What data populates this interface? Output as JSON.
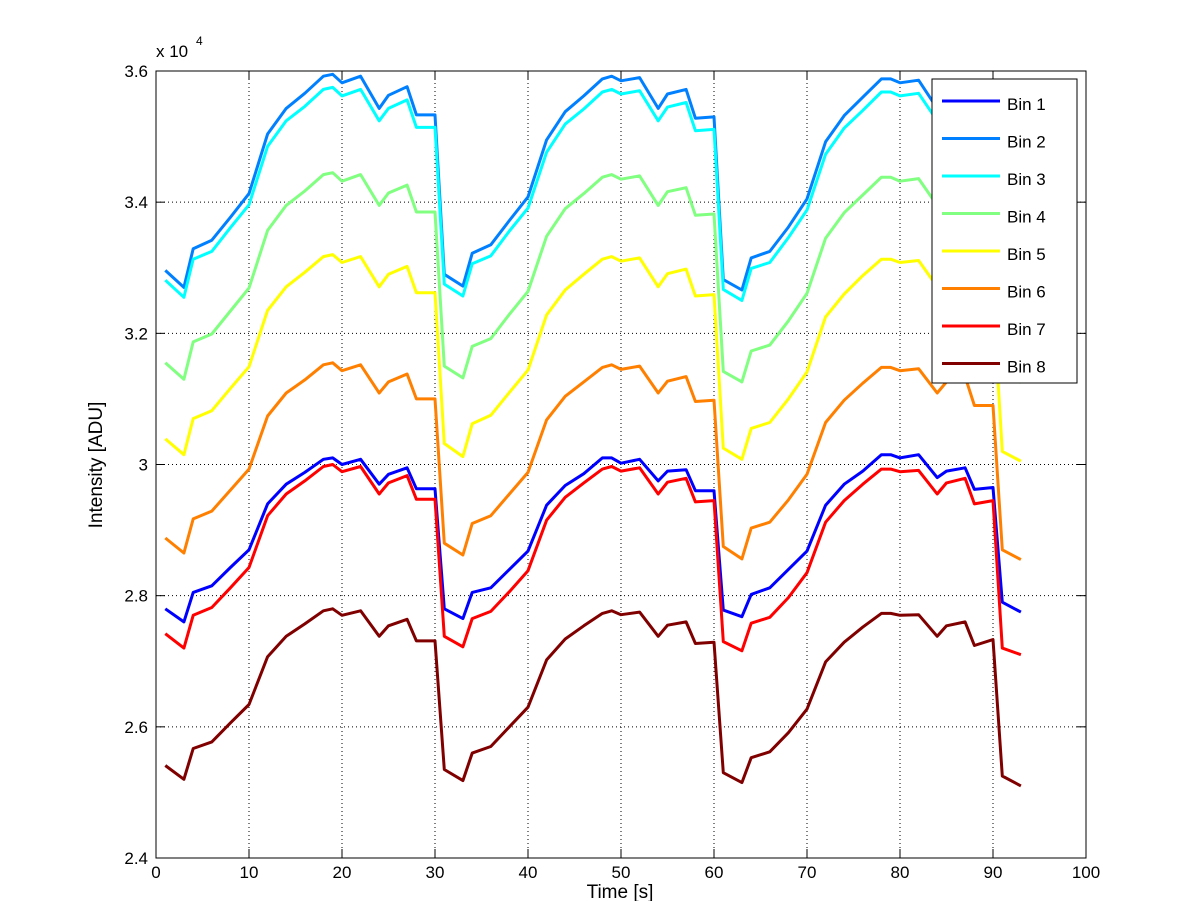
{
  "chart_data": {
    "type": "line",
    "xlabel": "Time [s]",
    "ylabel": "Intensity [ADU]",
    "y_multiplier_label": "x 10",
    "y_multiplier_exp": "4",
    "xlim": [
      0,
      100
    ],
    "ylim": [
      2.4,
      3.6
    ],
    "xticks": [
      "0",
      "10",
      "20",
      "30",
      "40",
      "50",
      "60",
      "70",
      "80",
      "90",
      "100"
    ],
    "yticks": [
      "2.4",
      "2.6",
      "2.8",
      "3",
      "3.2",
      "3.4",
      "3.6"
    ],
    "grid": true,
    "legend_position": "top-right",
    "x": [
      1,
      3,
      4,
      6,
      8,
      10,
      12,
      14,
      16,
      18,
      19,
      20,
      22,
      24,
      25,
      27,
      28,
      30,
      31,
      33,
      34,
      36,
      38,
      40,
      42,
      44,
      46,
      48,
      49,
      50,
      52,
      54,
      55,
      57,
      58,
      60,
      61,
      63,
      64,
      66,
      68,
      70,
      72,
      74,
      76,
      78,
      79,
      80,
      82,
      84,
      85,
      87,
      88,
      90,
      91,
      93
    ],
    "series": [
      {
        "name": "Bin 1",
        "color": "#0000ff",
        "values": [
          2.78,
          2.76,
          2.805,
          2.815,
          2.843,
          2.87,
          2.94,
          2.97,
          2.988,
          3.008,
          3.01,
          3.0,
          3.008,
          2.97,
          2.985,
          2.995,
          2.963,
          2.963,
          2.78,
          2.765,
          2.805,
          2.812,
          2.84,
          2.868,
          2.938,
          2.968,
          2.986,
          3.01,
          3.01,
          3.002,
          3.008,
          2.975,
          2.99,
          2.992,
          2.96,
          2.96,
          2.778,
          2.768,
          2.802,
          2.812,
          2.84,
          2.868,
          2.938,
          2.97,
          2.99,
          3.015,
          3.015,
          3.01,
          3.015,
          2.98,
          2.99,
          2.995,
          2.962,
          2.965,
          2.79,
          2.775
        ]
      },
      {
        "name": "Bin 2",
        "color": "#0080ff",
        "values": [
          3.296,
          3.27,
          3.329,
          3.342,
          3.377,
          3.413,
          3.504,
          3.543,
          3.566,
          3.592,
          3.595,
          3.582,
          3.592,
          3.543,
          3.563,
          3.576,
          3.533,
          3.533,
          3.29,
          3.272,
          3.322,
          3.335,
          3.372,
          3.408,
          3.495,
          3.538,
          3.562,
          3.588,
          3.592,
          3.585,
          3.59,
          3.543,
          3.565,
          3.572,
          3.528,
          3.53,
          3.282,
          3.266,
          3.315,
          3.325,
          3.362,
          3.405,
          3.492,
          3.532,
          3.56,
          3.588,
          3.588,
          3.582,
          3.586,
          3.543,
          3.562,
          3.572,
          3.522,
          3.522,
          3.28,
          3.27
        ]
      },
      {
        "name": "Bin 3",
        "color": "#00ffff",
        "values": [
          3.281,
          3.255,
          3.313,
          3.325,
          3.361,
          3.396,
          3.485,
          3.524,
          3.546,
          3.572,
          3.575,
          3.562,
          3.572,
          3.524,
          3.543,
          3.556,
          3.514,
          3.514,
          3.275,
          3.257,
          3.306,
          3.318,
          3.356,
          3.391,
          3.476,
          3.519,
          3.542,
          3.568,
          3.572,
          3.565,
          3.57,
          3.524,
          3.545,
          3.552,
          3.509,
          3.511,
          3.267,
          3.25,
          3.299,
          3.308,
          3.346,
          3.388,
          3.473,
          3.513,
          3.54,
          3.568,
          3.568,
          3.562,
          3.566,
          3.524,
          3.542,
          3.552,
          3.503,
          3.503,
          3.265,
          3.25
        ]
      },
      {
        "name": "Bin 4",
        "color": "#80ff80",
        "values": [
          3.155,
          3.13,
          3.187,
          3.199,
          3.234,
          3.269,
          3.357,
          3.395,
          3.417,
          3.442,
          3.445,
          3.432,
          3.442,
          3.395,
          3.414,
          3.426,
          3.385,
          3.385,
          3.15,
          3.132,
          3.18,
          3.192,
          3.229,
          3.264,
          3.348,
          3.39,
          3.413,
          3.438,
          3.442,
          3.435,
          3.44,
          3.395,
          3.416,
          3.422,
          3.38,
          3.382,
          3.142,
          3.126,
          3.173,
          3.182,
          3.219,
          3.261,
          3.345,
          3.384,
          3.411,
          3.438,
          3.438,
          3.432,
          3.436,
          3.395,
          3.413,
          3.422,
          3.375,
          3.375,
          3.14,
          3.125
        ]
      },
      {
        "name": "Bin 5",
        "color": "#ffff00",
        "values": [
          3.039,
          3.015,
          3.07,
          3.082,
          3.116,
          3.149,
          3.235,
          3.271,
          3.293,
          3.317,
          3.32,
          3.308,
          3.317,
          3.271,
          3.29,
          3.302,
          3.262,
          3.262,
          3.032,
          3.012,
          3.062,
          3.075,
          3.11,
          3.144,
          3.228,
          3.266,
          3.29,
          3.313,
          3.317,
          3.31,
          3.315,
          3.271,
          3.291,
          3.298,
          3.257,
          3.259,
          3.025,
          3.008,
          3.055,
          3.064,
          3.1,
          3.141,
          3.225,
          3.26,
          3.288,
          3.313,
          3.313,
          3.308,
          3.311,
          3.271,
          3.29,
          3.298,
          3.252,
          3.252,
          3.02,
          3.005
        ]
      },
      {
        "name": "Bin 6",
        "color": "#ff8000",
        "values": [
          2.888,
          2.865,
          2.917,
          2.929,
          2.961,
          2.993,
          3.074,
          3.109,
          3.129,
          3.152,
          3.155,
          3.143,
          3.152,
          3.109,
          3.126,
          3.138,
          3.1,
          3.1,
          2.88,
          2.862,
          2.91,
          2.922,
          2.955,
          2.988,
          3.068,
          3.104,
          3.126,
          3.148,
          3.152,
          3.145,
          3.15,
          3.109,
          3.127,
          3.134,
          3.096,
          3.098,
          2.875,
          2.856,
          2.903,
          2.912,
          2.946,
          2.985,
          3.064,
          3.098,
          3.124,
          3.148,
          3.148,
          3.143,
          3.146,
          3.109,
          3.126,
          3.134,
          3.09,
          3.09,
          2.87,
          2.855
        ]
      },
      {
        "name": "Bin 7",
        "color": "#ff0000",
        "values": [
          2.742,
          2.72,
          2.77,
          2.782,
          2.812,
          2.843,
          2.922,
          2.955,
          2.975,
          2.997,
          3.0,
          2.989,
          2.997,
          2.955,
          2.972,
          2.983,
          2.947,
          2.947,
          2.738,
          2.722,
          2.765,
          2.776,
          2.806,
          2.838,
          2.915,
          2.95,
          2.972,
          2.993,
          2.997,
          2.99,
          2.995,
          2.955,
          2.973,
          2.979,
          2.943,
          2.945,
          2.73,
          2.716,
          2.758,
          2.767,
          2.797,
          2.835,
          2.912,
          2.945,
          2.97,
          2.993,
          2.993,
          2.989,
          2.991,
          2.955,
          2.972,
          2.979,
          2.94,
          2.945,
          2.72,
          2.71
        ]
      },
      {
        "name": "Bin 8",
        "color": "#800000",
        "values": [
          2.541,
          2.52,
          2.567,
          2.577,
          2.606,
          2.634,
          2.707,
          2.738,
          2.757,
          2.777,
          2.78,
          2.77,
          2.777,
          2.738,
          2.754,
          2.764,
          2.731,
          2.731,
          2.535,
          2.518,
          2.56,
          2.57,
          2.6,
          2.63,
          2.702,
          2.734,
          2.754,
          2.773,
          2.777,
          2.771,
          2.775,
          2.738,
          2.755,
          2.76,
          2.727,
          2.729,
          2.53,
          2.515,
          2.553,
          2.562,
          2.591,
          2.627,
          2.699,
          2.729,
          2.752,
          2.773,
          2.773,
          2.77,
          2.771,
          2.738,
          2.754,
          2.76,
          2.724,
          2.733,
          2.525,
          2.51
        ]
      }
    ]
  }
}
